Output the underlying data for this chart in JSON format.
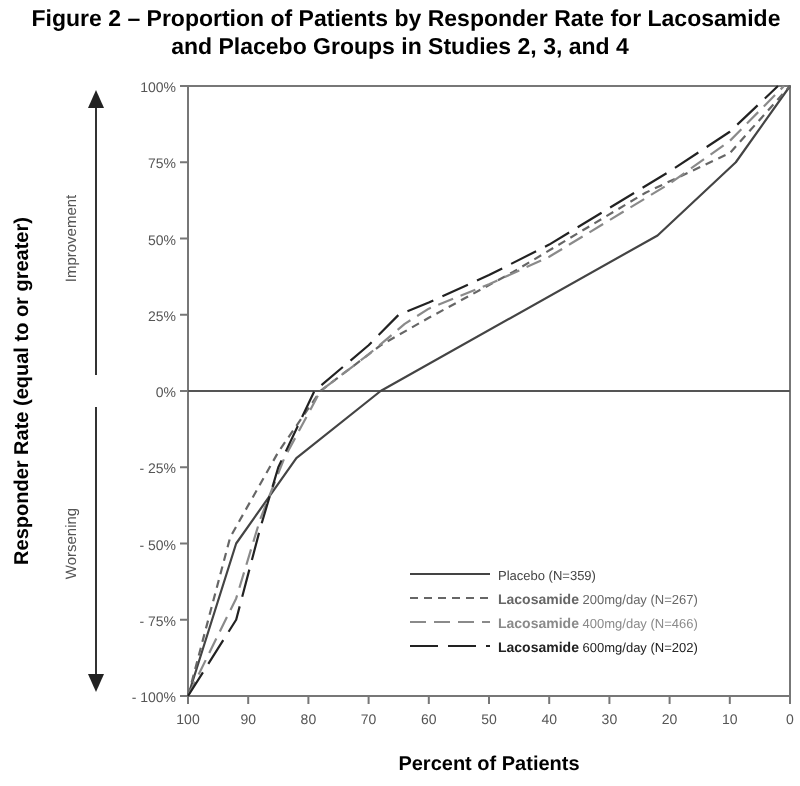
{
  "chart_data": {
    "type": "line",
    "title": "Figure 2 – Proportion of Patients by Responder Rate for Lacosamide and Placebo Groups in Studies 2, 3, and 4",
    "xlabel": "Percent of Patients",
    "ylabel": "Responder Rate (equal to or greater)",
    "series": [
      {
        "name": "Placebo (N=359)",
        "color": "#444444",
        "line_style": "solid",
        "x": [
          100,
          92,
          82,
          68,
          22,
          9,
          0
        ],
        "values": [
          -100,
          -50,
          -22,
          0,
          51,
          75,
          100
        ]
      },
      {
        "name": "Lacosamide 200mg/day (N=267)",
        "color": "#666666",
        "line_style": "dashed",
        "x": [
          100,
          93,
          85,
          78,
          68,
          60,
          46,
          24,
          10,
          0
        ],
        "values": [
          -100,
          -48,
          -20,
          0,
          15,
          24,
          39,
          65,
          78,
          100
        ]
      },
      {
        "name": "Lacosamide 400mg/day (N=466)",
        "color": "#8a8a8a",
        "line_style": "dashed",
        "x": [
          100,
          92,
          88,
          84,
          78,
          70,
          64,
          60,
          50,
          40,
          20,
          10,
          1
        ],
        "values": [
          -100,
          -68,
          -42,
          -22,
          0,
          12,
          22,
          27,
          35,
          44,
          68,
          82,
          100
        ]
      },
      {
        "name": "Lacosamide 600mg/day (N=202)",
        "color": "#222222",
        "line_style": "dashed",
        "x": [
          100,
          92,
          88,
          85,
          79,
          70,
          65,
          60,
          50,
          40,
          20,
          10,
          2
        ],
        "values": [
          -100,
          -75,
          -45,
          -25,
          0,
          15,
          25,
          29,
          38,
          48,
          72,
          85,
          100
        ]
      }
    ],
    "xlim": [
      100,
      0
    ],
    "xticks": [
      100,
      90,
      80,
      70,
      60,
      50,
      40,
      30,
      20,
      10,
      0
    ],
    "ylim": [
      -100,
      100
    ],
    "yticks": [
      {
        "value": -100,
        "label": "- 100%"
      },
      {
        "value": -75,
        "label": "- 75%"
      },
      {
        "value": -50,
        "label": "- 50%"
      },
      {
        "value": -25,
        "label": "- 25%"
      },
      {
        "value": 0,
        "label": "0%"
      },
      {
        "value": 25,
        "label": "25%"
      },
      {
        "value": 50,
        "label": "50%"
      },
      {
        "value": 75,
        "label": "75%"
      },
      {
        "value": 100,
        "label": "100%"
      }
    ],
    "ref_lines": [
      {
        "axis": "y",
        "value": 0,
        "color": "#555555"
      }
    ],
    "annotations": [
      "Improvement",
      "Worsening"
    ],
    "grid": false,
    "legend": "bottom right",
    "marker": "none"
  }
}
